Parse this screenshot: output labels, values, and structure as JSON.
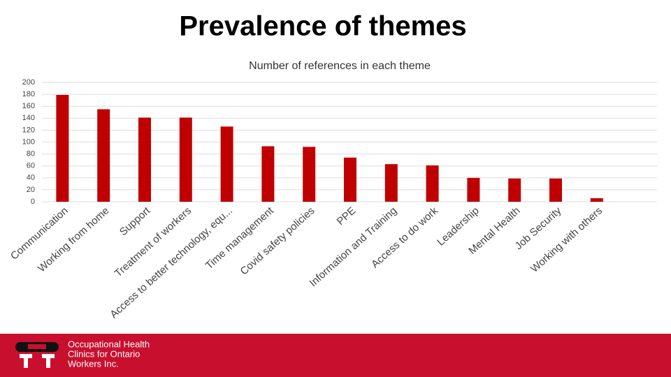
{
  "chart_data": {
    "type": "bar",
    "title": "Prevalence of themes",
    "subtitle": "Number of references in each theme",
    "categories": [
      "Communication",
      "Working from home",
      "Support",
      "Treatment of workers",
      "Access to better technology, equ...",
      "Time management",
      "Covid safety policies",
      "PPE",
      "Information and Training",
      "Access to do work",
      "Leadership",
      "Mental Health",
      "Job Security",
      "Working with others"
    ],
    "values": [
      179,
      155,
      141,
      141,
      126,
      93,
      92,
      74,
      63,
      61,
      40,
      39,
      39,
      6
    ],
    "color": "#c00000",
    "ylim": [
      0,
      200
    ],
    "yticks": [
      0,
      20,
      40,
      60,
      80,
      100,
      120,
      140,
      160,
      180,
      200
    ],
    "grid": true
  },
  "footer": {
    "logo_lines": [
      "Occupational Health",
      "Clinics for Ontario",
      "Workers Inc."
    ]
  }
}
